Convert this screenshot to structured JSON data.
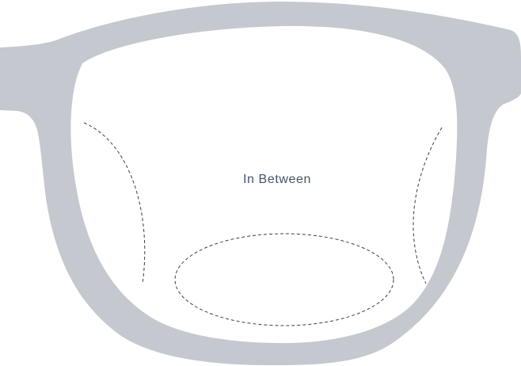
{
  "diagram": {
    "zone_label": "In Between",
    "colors": {
      "frame": "#c5c8ce",
      "lens": "#ffffff",
      "zone_outline": "#3b3f46",
      "label_text": "#44546a"
    }
  }
}
